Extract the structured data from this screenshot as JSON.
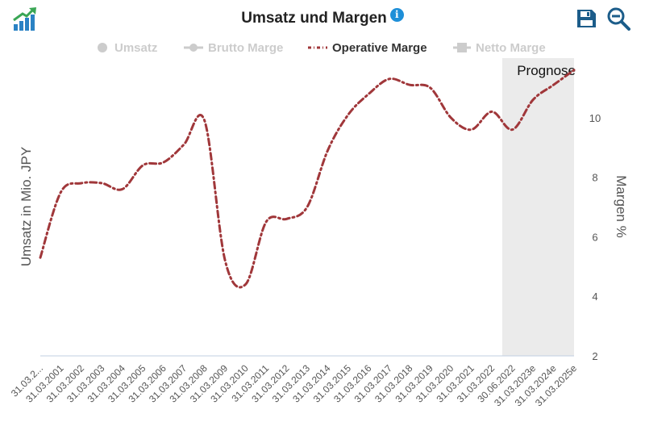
{
  "header": {
    "title": "Umsatz und Margen",
    "info_symbol": "i"
  },
  "icons": {
    "logo": "growth-chart-logo-icon",
    "save": "save-icon",
    "zoom": "zoom-out-icon"
  },
  "colors": {
    "operating_margin": "#a0373a",
    "forecast_band": "#ebebeb",
    "legend_inactive": "#cccccc",
    "icon_blue": "#1c5d8a",
    "info_blue": "#1e8fd8"
  },
  "legend": [
    {
      "label": "Umsatz",
      "active": false,
      "symbol": "circle"
    },
    {
      "label": "Brutto Marge",
      "active": false,
      "symbol": "line-circle"
    },
    {
      "label": "Operative Marge",
      "active": true,
      "symbol": "dash-dot"
    },
    {
      "label": "Netto Marge",
      "active": false,
      "symbol": "square"
    }
  ],
  "chart_data": {
    "type": "line",
    "title": "Umsatz und Margen",
    "ylabel_left": "Umsatz in Mio. JPY",
    "ylabel_right": "Margen %",
    "ylim_right": [
      2,
      12
    ],
    "yticks_right": [
      2,
      4,
      6,
      8,
      10
    ],
    "forecast_label": "Prognose",
    "forecast_start_category": "30.06.2022",
    "categories": [
      "31.03.2...",
      "31.03.2001",
      "31.03.2002",
      "31.03.2003",
      "31.03.2004",
      "31.03.2005",
      "31.03.2006",
      "31.03.2007",
      "31.03.2008",
      "31.03.2009",
      "31.03.2010",
      "31.03.2011",
      "31.03.2012",
      "31.03.2013",
      "31.03.2014",
      "31.03.2015",
      "31.03.2016",
      "31.03.2017",
      "31.03.2018",
      "31.03.2019",
      "31.03.2020",
      "31.03.2021",
      "31.03.2022",
      "30.06.2022",
      "31.03.2023e",
      "31.03.2024e",
      "31.03.2025e"
    ],
    "series": [
      {
        "name": "Operative Marge",
        "values": [
          5.3,
          7.5,
          7.8,
          7.8,
          7.6,
          8.4,
          8.5,
          9.1,
          9.9,
          5.2,
          4.4,
          6.5,
          6.6,
          7.0,
          8.9,
          10.1,
          10.8,
          11.3,
          11.1,
          11.0,
          10.0,
          9.6,
          10.2,
          9.6,
          10.6,
          11.1,
          11.6
        ]
      }
    ],
    "grid": false
  }
}
